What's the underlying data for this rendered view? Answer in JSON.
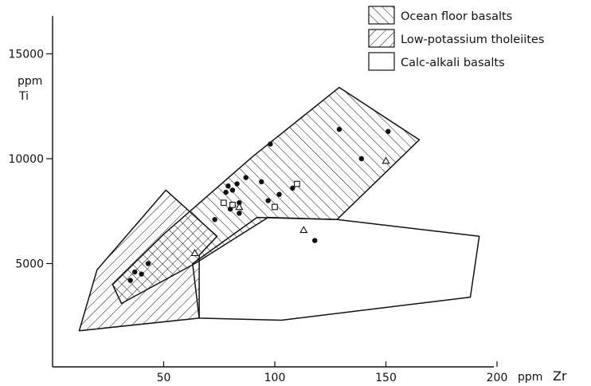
{
  "chart_data": {
    "type": "scatter",
    "x_unit_label": "ppm",
    "x_symbol": "Zr",
    "y_unit_label": "ppm",
    "y_symbol": "Ti",
    "xlim": [
      0,
      210
    ],
    "ylim": [
      0,
      16500
    ],
    "x_ticks": [
      {
        "value": 50,
        "label": "50"
      },
      {
        "value": 100,
        "label": "100"
      },
      {
        "value": 150,
        "label": "150"
      },
      {
        "value": 200,
        "label": "200"
      }
    ],
    "y_ticks": [
      {
        "value": 5000,
        "label": "5000"
      },
      {
        "value": 10000,
        "label": "10000"
      },
      {
        "value": 15000,
        "label": "15000"
      }
    ],
    "legend": {
      "placement": "top-right",
      "entries": [
        {
          "label": "Ocean floor basalts",
          "fill": "hatch-forward"
        },
        {
          "label": "Low-potassium tholeiites",
          "fill": "hatch-back"
        },
        {
          "label": "Calc-alkali basalts",
          "fill": "none"
        }
      ]
    },
    "fields": [
      {
        "name": "Ocean floor basalts",
        "fill": "hatch-forward",
        "vertices": [
          [
            31,
            3100
          ],
          [
            27,
            4000
          ],
          [
            50,
            6400
          ],
          [
            90,
            10100
          ],
          [
            129,
            13400
          ],
          [
            165,
            10900
          ],
          [
            128,
            7100
          ],
          [
            97,
            7200
          ],
          [
            64,
            5000
          ]
        ]
      },
      {
        "name": "Low-potassium tholeiites",
        "fill": "hatch-back",
        "vertices": [
          [
            12,
            1800
          ],
          [
            20,
            4700
          ],
          [
            51,
            8500
          ],
          [
            74,
            6300
          ],
          [
            66,
            5400
          ],
          [
            66,
            2400
          ]
        ]
      },
      {
        "name": "Calc-alkali basalts",
        "fill": "none",
        "vertices": [
          [
            63,
            5000
          ],
          [
            92,
            7200
          ],
          [
            128,
            7100
          ],
          [
            192,
            6300
          ],
          [
            188,
            3400
          ],
          [
            103,
            2300
          ],
          [
            66,
            2400
          ]
        ]
      }
    ],
    "series": [
      {
        "marker": "filled-circle",
        "points": [
          [
            35,
            4200
          ],
          [
            37,
            4600
          ],
          [
            40,
            4500
          ],
          [
            43,
            5000
          ],
          [
            73,
            7100
          ],
          [
            78,
            8400
          ],
          [
            79,
            8700
          ],
          [
            80,
            7600
          ],
          [
            81,
            8500
          ],
          [
            83,
            8800
          ],
          [
            84,
            7900
          ],
          [
            84,
            7400
          ],
          [
            87,
            9100
          ],
          [
            94,
            8900
          ],
          [
            97,
            8000
          ],
          [
            98,
            10700
          ],
          [
            102,
            8300
          ],
          [
            108,
            8600
          ],
          [
            118,
            6100
          ],
          [
            129,
            11400
          ],
          [
            139,
            10000
          ],
          [
            151,
            11300
          ]
        ]
      },
      {
        "marker": "open-square",
        "points": [
          [
            77,
            7900
          ],
          [
            81,
            7800
          ],
          [
            100,
            7700
          ],
          [
            110,
            8800
          ]
        ]
      },
      {
        "marker": "open-triangle",
        "points": [
          [
            64,
            5500
          ],
          [
            84,
            7700
          ],
          [
            113,
            6600
          ],
          [
            150,
            9900
          ]
        ]
      }
    ]
  }
}
